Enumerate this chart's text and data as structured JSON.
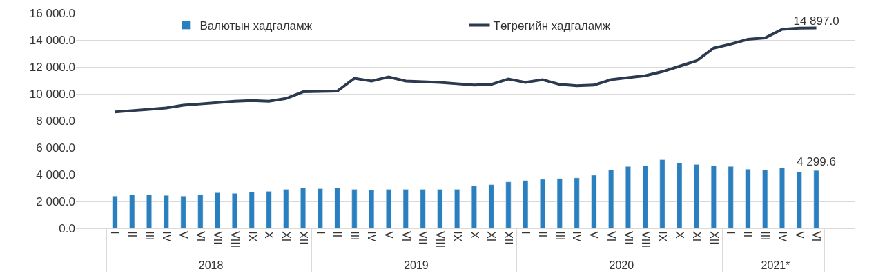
{
  "chart_data": {
    "type": "bar",
    "categories": [
      [
        "2018",
        "I"
      ],
      [
        null,
        "II"
      ],
      [
        null,
        "III"
      ],
      [
        null,
        "IV"
      ],
      [
        null,
        "V"
      ],
      [
        null,
        "VI"
      ],
      [
        null,
        "VII"
      ],
      [
        null,
        "VIII"
      ],
      [
        null,
        "IX"
      ],
      [
        null,
        "X"
      ],
      [
        null,
        "XI"
      ],
      [
        null,
        "XII"
      ],
      [
        "2019",
        "I"
      ],
      [
        null,
        "II"
      ],
      [
        null,
        "III"
      ],
      [
        null,
        "IV"
      ],
      [
        null,
        "V"
      ],
      [
        null,
        "VI"
      ],
      [
        null,
        "VII"
      ],
      [
        null,
        "VIII"
      ],
      [
        null,
        "IX"
      ],
      [
        null,
        "X"
      ],
      [
        null,
        "XI"
      ],
      [
        null,
        "XII"
      ],
      [
        "2020",
        "I"
      ],
      [
        null,
        "II"
      ],
      [
        null,
        "III"
      ],
      [
        null,
        "IV"
      ],
      [
        null,
        "V"
      ],
      [
        null,
        "VI"
      ],
      [
        null,
        "VII"
      ],
      [
        null,
        "VIII"
      ],
      [
        null,
        "IX"
      ],
      [
        null,
        "X"
      ],
      [
        null,
        "XI"
      ],
      [
        null,
        "XII"
      ],
      [
        "2021*",
        "I"
      ],
      [
        null,
        "II"
      ],
      [
        null,
        "III"
      ],
      [
        null,
        "IV"
      ],
      [
        null,
        "V"
      ],
      [
        null,
        "VI"
      ]
    ],
    "series": [
      {
        "name": "Валютын хадгаламж",
        "color": "#2a7fbf",
        "values": [
          2400,
          2500,
          2500,
          2450,
          2400,
          2500,
          2650,
          2600,
          2700,
          2750,
          2900,
          3000,
          2950,
          3000,
          2900,
          2850,
          2900,
          2900,
          2900,
          2900,
          2900,
          3150,
          3250,
          3450,
          3550,
          3650,
          3700,
          3750,
          3950,
          4350,
          4600,
          4650,
          5100,
          4850,
          4750,
          4650,
          4600,
          4400,
          4350,
          4500,
          4200,
          4299.6
        ],
        "value_labels": [
          null,
          null,
          null,
          null,
          null,
          null,
          null,
          null,
          null,
          null,
          null,
          null,
          null,
          null,
          null,
          null,
          null,
          null,
          null,
          null,
          null,
          null,
          null,
          null,
          null,
          null,
          null,
          null,
          null,
          null,
          null,
          null,
          null,
          null,
          null,
          null,
          null,
          null,
          null,
          null,
          null,
          "4 299.6"
        ]
      },
      {
        "name": "Төгрөгийн хадгаламж",
        "type": "line",
        "color": "#2b3a4e",
        "values": [
          8650,
          8750,
          8850,
          8950,
          9150,
          9250,
          9350,
          9450,
          9500,
          9450,
          9650,
          10150,
          10180,
          10200,
          11150,
          10950,
          11250,
          10950,
          10900,
          10850,
          10750,
          10650,
          10700,
          11100,
          10850,
          11050,
          10700,
          10600,
          10650,
          11050,
          11200,
          11350,
          11650,
          12050,
          12450,
          13400,
          13700,
          14050,
          14150,
          14800,
          14880,
          14897
        ],
        "value_labels": [
          null,
          null,
          null,
          null,
          null,
          null,
          null,
          null,
          null,
          null,
          null,
          null,
          null,
          null,
          null,
          null,
          null,
          null,
          null,
          null,
          null,
          null,
          null,
          null,
          null,
          null,
          null,
          null,
          null,
          null,
          null,
          null,
          null,
          null,
          null,
          null,
          null,
          null,
          null,
          null,
          null,
          "14 897.0"
        ]
      }
    ],
    "ylim": [
      0,
      16000
    ],
    "yticks": [
      {
        "value": 0,
        "label": "0.0"
      },
      {
        "value": 2000,
        "label": "2 000.0"
      },
      {
        "value": 4000,
        "label": "4 000.0"
      },
      {
        "value": 6000,
        "label": "6 000.0"
      },
      {
        "value": 8000,
        "label": "8 000.0"
      },
      {
        "value": 10000,
        "label": "10 000.0"
      },
      {
        "value": 12000,
        "label": "12 000.0"
      },
      {
        "value": 14000,
        "label": "14 000.0"
      },
      {
        "value": 16000,
        "label": "16 000.0"
      }
    ],
    "grid": "y",
    "legend": "top",
    "marker": "none",
    "line_style": "solid"
  }
}
